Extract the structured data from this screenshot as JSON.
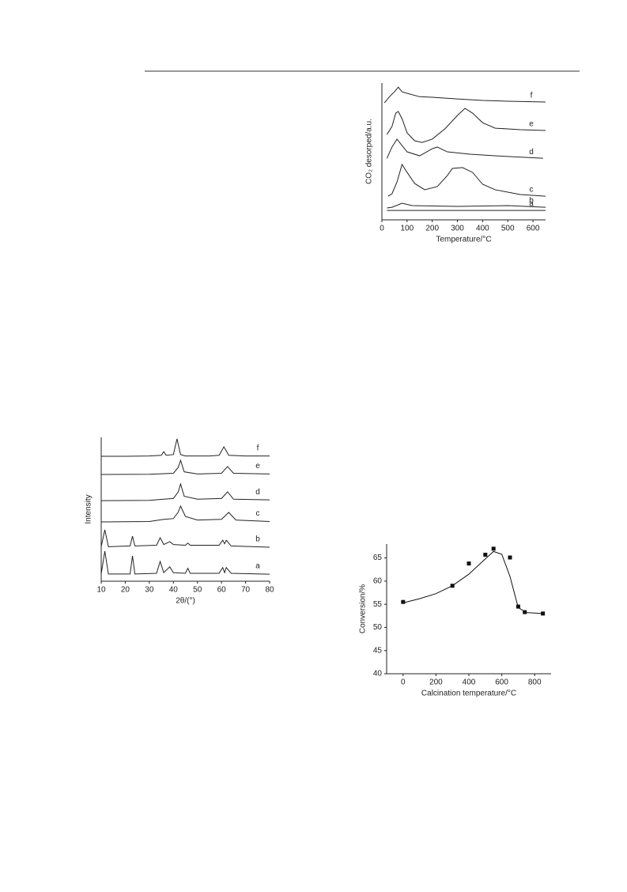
{
  "chart_data": [
    {
      "type": "line",
      "x_label": "Temperature/°C",
      "y_label": "CO₂ desorped/a.u.",
      "xlim": [
        0,
        650
      ],
      "xticks": [
        0,
        100,
        200,
        300,
        400,
        500,
        600
      ],
      "ylim": [
        0,
        100
      ],
      "color": "#222",
      "series": [
        {
          "name": "f",
          "x": [
            10,
            30,
            50,
            65,
            80,
            100,
            150,
            200,
            300,
            400,
            500,
            650
          ],
          "values": [
            85.5,
            90,
            93.6,
            97,
            93.6,
            92.5,
            90,
            89.6,
            88.4,
            87.3,
            86.7,
            86.1
          ]
        },
        {
          "name": "e",
          "x": [
            20,
            40,
            55,
            65,
            80,
            100,
            130,
            160,
            200,
            250,
            300,
            330,
            360,
            400,
            450,
            500,
            550,
            650
          ],
          "values": [
            62.4,
            68.2,
            78,
            79.2,
            74,
            63.6,
            57.8,
            56.6,
            59,
            66.5,
            76.3,
            81.5,
            78,
            71,
            67,
            66.5,
            65.9,
            65.3
          ]
        },
        {
          "name": "d",
          "x": [
            20,
            40,
            60,
            80,
            100,
            150,
            200,
            220,
            260,
            350,
            450,
            640
          ],
          "values": [
            45,
            53.2,
            59,
            54.3,
            49.7,
            46.8,
            52,
            53.2,
            49.7,
            48,
            46.8,
            45
          ]
        },
        {
          "name": "c",
          "x": [
            25,
            40,
            60,
            80,
            100,
            130,
            170,
            220,
            260,
            280,
            320,
            360,
            400,
            450,
            550,
            650
          ],
          "values": [
            17.3,
            19,
            27.7,
            40.5,
            34.7,
            26.6,
            22,
            24.3,
            32.4,
            37.6,
            38.2,
            34.7,
            26,
            22,
            18.5,
            17.3
          ]
        },
        {
          "name": "b",
          "x": [
            20,
            40,
            80,
            120,
            300,
            500,
            650
          ],
          "values": [
            8.7,
            9.2,
            12.1,
            10.4,
            9.8,
            10.4,
            9.2
          ]
        },
        {
          "name": "a",
          "x": [
            20,
            650
          ],
          "values": [
            6.9,
            6.9
          ]
        }
      ]
    },
    {
      "type": "line",
      "x_label": "2θ/(°)",
      "y_label": "Intensity",
      "xlim": [
        10,
        80
      ],
      "xticks": [
        10,
        20,
        30,
        40,
        50,
        60,
        70,
        80
      ],
      "ylim": [
        0,
        100
      ],
      "color": "#222",
      "series": [
        {
          "name": "f",
          "x": [
            10,
            20,
            30,
            35,
            36,
            37,
            40,
            41.5,
            43,
            45,
            55,
            59,
            61,
            63,
            70,
            80
          ],
          "values": [
            86.8,
            86.8,
            87,
            87.5,
            90,
            87.5,
            88,
            98.9,
            88,
            87,
            87,
            87.5,
            93.4,
            87.5,
            87,
            87
          ]
        },
        {
          "name": "e",
          "x": [
            10,
            30,
            40,
            42,
            43,
            44.5,
            50,
            60,
            62.5,
            65,
            80
          ],
          "values": [
            74.2,
            74.3,
            75,
            79,
            84,
            76,
            74.5,
            75,
            79.7,
            75,
            74.5
          ]
        },
        {
          "name": "d",
          "x": [
            10,
            30,
            36,
            40,
            42,
            43,
            44.5,
            50,
            60,
            62.5,
            65,
            80
          ],
          "values": [
            56,
            56.2,
            57,
            57.5,
            62,
            67.6,
            59,
            57,
            57.5,
            62.1,
            57,
            56.5
          ]
        },
        {
          "name": "c",
          "x": [
            10,
            30,
            36,
            40,
            42,
            43,
            45,
            50,
            60,
            63,
            66,
            80
          ],
          "values": [
            41.2,
            41.5,
            43,
            43.5,
            48,
            52.2,
            45,
            42.5,
            43,
            47.8,
            42.5,
            41.5
          ]
        },
        {
          "name": "b",
          "x": [
            10,
            11.5,
            13,
            22,
            23,
            24,
            33,
            34.5,
            36,
            38.5,
            40,
            45,
            46,
            47,
            59,
            60.5,
            61.3,
            62,
            64,
            80
          ],
          "values": [
            24,
            35.7,
            24,
            24.5,
            31.3,
            24.5,
            25,
            30.2,
            25.5,
            27.5,
            25.5,
            25,
            26.5,
            25,
            25,
            28.5,
            26,
            28.5,
            24.5,
            23.6
          ]
        },
        {
          "name": "a",
          "x": [
            10,
            11.5,
            13,
            22,
            23,
            24,
            33,
            34.5,
            36,
            38.5,
            40,
            45,
            46,
            47,
            59,
            60.5,
            61.3,
            62,
            64,
            80
          ],
          "values": [
            5,
            20.9,
            5,
            5,
            17.6,
            5,
            5.5,
            13.7,
            6,
            10,
            6,
            5.5,
            9,
            5.5,
            5.5,
            9.5,
            6,
            9.5,
            5.5,
            4.9
          ]
        }
      ]
    },
    {
      "type": "scatter",
      "x_label": "Calcination temperature/°C",
      "y_label": "Conversion/%",
      "xlim": [
        -100,
        900
      ],
      "xticks": [
        0,
        200,
        400,
        600,
        800
      ],
      "ylim": [
        40,
        68
      ],
      "yticks": [
        40,
        45,
        50,
        55,
        60,
        65
      ],
      "color": "#111",
      "series": [
        {
          "mode": "markers",
          "x": [
            0,
            300,
            400,
            500,
            550,
            650,
            700,
            740,
            850
          ],
          "values": [
            55.5,
            59,
            63.8,
            65.7,
            67,
            65.1,
            54.5,
            53.3,
            53
          ]
        },
        {
          "mode": "line",
          "x": [
            0,
            100,
            200,
            300,
            400,
            500,
            550,
            600,
            650,
            700,
            750,
            850
          ],
          "values": [
            55.3,
            56.2,
            57.3,
            59,
            61.5,
            64.8,
            66.4,
            65.8,
            61,
            54.3,
            53.2,
            53
          ]
        }
      ]
    }
  ]
}
